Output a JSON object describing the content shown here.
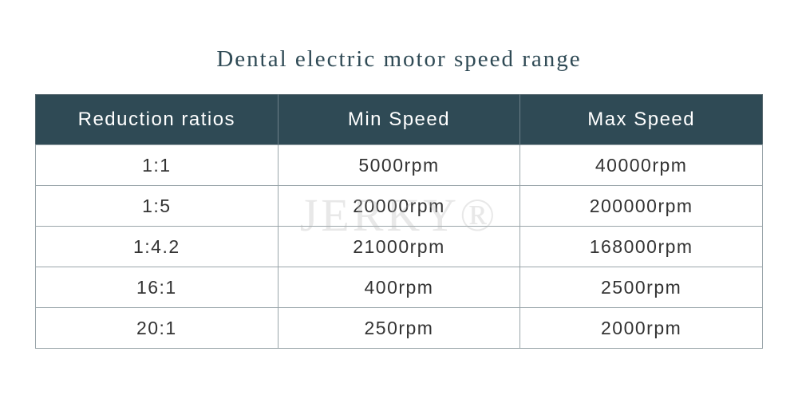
{
  "title": "Dental electric motor speed range",
  "watermark": "JERKY®",
  "table": {
    "header": [
      "Reduction ratios",
      "Min Speed",
      "Max Speed"
    ],
    "rows": [
      [
        "1:1",
        "5000rpm",
        "40000rpm"
      ],
      [
        "1:5",
        "20000rpm",
        "200000rpm"
      ],
      [
        "1:4.2",
        "21000rpm",
        "168000rpm"
      ],
      [
        "16:1",
        "400rpm",
        "2500rpm"
      ],
      [
        "20:1",
        "250rpm",
        "2000rpm"
      ]
    ]
  }
}
